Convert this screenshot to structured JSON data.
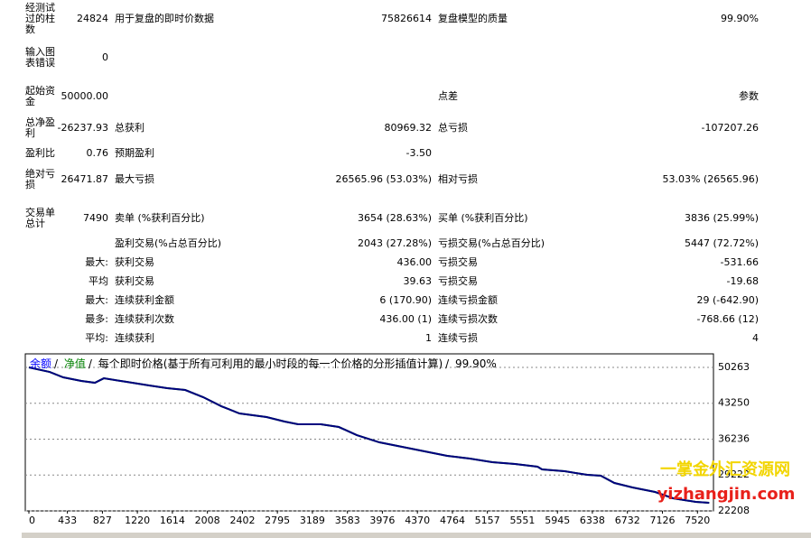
{
  "table": {
    "rows": [
      [
        "经测试过的柱数",
        "24824",
        "用于复盘的即时价数据",
        "75826614",
        "复盘模型的质量",
        "99.90%"
      ],
      [
        "输入图表错误",
        "0",
        null,
        null,
        null,
        null
      ],
      [
        "起始资金",
        "50000.00",
        null,
        null,
        "点差",
        "参数"
      ],
      [
        "总净盈利",
        "-26237.93",
        "总获利",
        "80969.32",
        "总亏损",
        "-107207.26"
      ],
      [
        "盈利比",
        "0.76",
        "预期盈利",
        "-3.50",
        null,
        null
      ],
      [
        "绝对亏损",
        "26471.87",
        "最大亏损",
        "26565.96 (53.03%)",
        "相对亏损",
        "53.03% (26565.96)"
      ],
      [
        "交易单总计",
        "7490",
        "卖单 (%获利百分比)",
        "3654 (28.63%)",
        "买单 (%获利百分比)",
        "3836 (25.99%)"
      ],
      [
        null,
        null,
        "盈利交易(%占总百分比)",
        "2043 (27.28%)",
        "亏损交易(%占总百分比)",
        "5447 (72.72%)"
      ],
      [
        null,
        "最大:",
        "获利交易",
        "436.00",
        "亏损交易",
        "-531.66"
      ],
      [
        null,
        "平均",
        "获利交易",
        "39.63",
        "亏损交易",
        "-19.68"
      ],
      [
        null,
        "最大:",
        "连续获利金额",
        "6 (170.90)",
        "连续亏损金额",
        "29 (-642.90)"
      ],
      [
        null,
        "最多:",
        "连续获利次数",
        "436.00 (1)",
        "连续亏损次数",
        "-768.66 (12)"
      ],
      [
        null,
        "平均:",
        "连续获利",
        "1",
        "连续亏损",
        "4"
      ]
    ]
  },
  "chart_data": {
    "type": "line",
    "title": "每个即时价格(基于所有可利用的最小时段的每一个价格的分形插值计算)",
    "subtitle": "99.90%",
    "separator": "/",
    "x": [
      0,
      234,
      386,
      589,
      742,
      843,
      1098,
      1352,
      1555,
      1758,
      1961,
      2165,
      2368,
      2673,
      2876,
      3028,
      3283,
      3486,
      3689,
      3943,
      4197,
      4451,
      4705,
      4959,
      5213,
      5467,
      5721,
      5772,
      6026,
      6280,
      6433,
      6585,
      6789,
      7043,
      7246,
      7500,
      7652
    ],
    "series": [
      {
        "name": "余额",
        "color": "#00007f",
        "values": [
          50263,
          49374,
          48315,
          47610,
          47257,
          48138,
          47434,
          46728,
          46198,
          45846,
          44434,
          42671,
          41259,
          40554,
          39672,
          39142,
          39142,
          38613,
          37026,
          35614,
          34732,
          33850,
          32968,
          32439,
          31734,
          31381,
          30852,
          30322,
          29970,
          29264,
          29088,
          27676,
          26794,
          25912,
          24678,
          23972,
          23796
        ]
      },
      {
        "name": "净值",
        "color": "#008000",
        "values": [
          50263,
          49374,
          48315,
          47610,
          47257,
          48138,
          47434,
          46728,
          46198,
          45846,
          44434,
          42671,
          41259,
          40554,
          39672,
          39142,
          39142,
          38613,
          37026,
          35614,
          34732,
          33850,
          32968,
          32439,
          31734,
          31381,
          30852,
          30322,
          29970,
          29264,
          29088,
          27676,
          26794,
          25912,
          24678,
          23972,
          23796
        ]
      }
    ],
    "xlim": [
      0,
      7700
    ],
    "ylim": [
      22208,
      52910
    ],
    "xticks": [
      0,
      433,
      827,
      1220,
      1614,
      2008,
      2402,
      2795,
      3189,
      3583,
      3976,
      4370,
      4764,
      5157,
      5551,
      5945,
      6338,
      6732,
      7126,
      7520
    ],
    "yticks": [
      22208,
      29222,
      36236,
      43250,
      50263
    ],
    "grid": true,
    "annotations": [
      "一掌金外汇资源网",
      "yizhangjin.com"
    ]
  }
}
